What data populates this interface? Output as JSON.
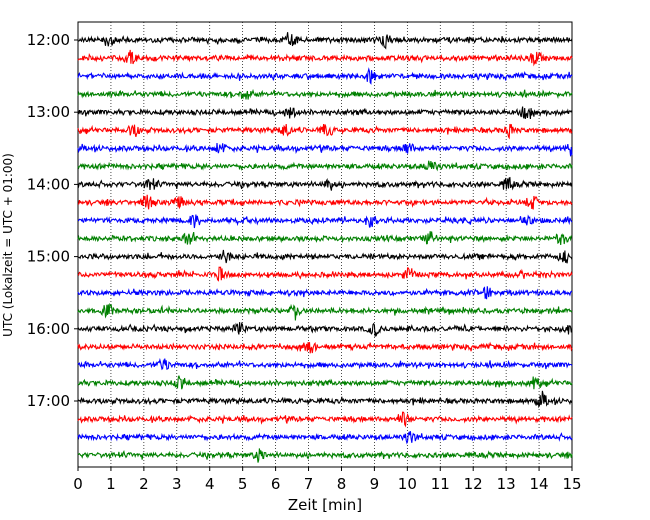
{
  "chart_data": {
    "type": "line",
    "title": "",
    "xlabel": "Zeit  [min]",
    "ylabel": "UTC (Lokalzeit = UTC + 01:00)",
    "xlim": [
      0,
      15
    ],
    "x_ticks": [
      "0",
      "1",
      "2",
      "3",
      "4",
      "5",
      "6",
      "7",
      "8",
      "9",
      "10",
      "11",
      "12",
      "13",
      "14",
      "15"
    ],
    "y_ticks": [
      "12:00",
      "13:00",
      "14:00",
      "15:00",
      "16:00",
      "17:00"
    ],
    "row_minutes": 15,
    "colors": [
      "#000000",
      "#ff0000",
      "#0000ff",
      "#008000"
    ],
    "grid": "vertical dotted",
    "traces": [
      {
        "start": "12:00",
        "events": [
          0.95,
          6.45,
          9.35
        ]
      },
      {
        "start": "12:15",
        "events": [
          1.6,
          13.9
        ]
      },
      {
        "start": "12:30",
        "events": [
          8.9
        ]
      },
      {
        "start": "12:45",
        "events": [
          5.1
        ]
      },
      {
        "start": "13:00",
        "events": [
          6.45,
          13.6
        ]
      },
      {
        "start": "13:15",
        "events": [
          1.7,
          6.3,
          7.55,
          13.1
        ]
      },
      {
        "start": "13:30",
        "events": [
          4.3,
          10.0,
          14.95
        ]
      },
      {
        "start": "13:45",
        "events": [
          10.7
        ]
      },
      {
        "start": "14:00",
        "events": [
          2.2,
          7.6,
          13.05
        ]
      },
      {
        "start": "14:15",
        "events": [
          2.1,
          3.05,
          13.8
        ]
      },
      {
        "start": "14:30",
        "events": [
          3.55,
          8.9,
          13.6
        ]
      },
      {
        "start": "14:45",
        "events": [
          3.35,
          10.7,
          14.7
        ]
      },
      {
        "start": "15:00",
        "events": [
          4.45,
          14.8
        ]
      },
      {
        "start": "15:15",
        "events": [
          4.3,
          10.05
        ]
      },
      {
        "start": "15:30",
        "events": [
          12.4
        ]
      },
      {
        "start": "15:45",
        "events": [
          0.9,
          6.6
        ]
      },
      {
        "start": "16:00",
        "events": [
          4.9,
          9.0,
          14.95
        ]
      },
      {
        "start": "16:15",
        "events": [
          7.05
        ]
      },
      {
        "start": "16:30",
        "events": [
          2.6
        ]
      },
      {
        "start": "16:45",
        "events": [
          3.1,
          13.85
        ]
      },
      {
        "start": "17:00",
        "events": [
          14.1
        ]
      },
      {
        "start": "17:15",
        "events": [
          9.9
        ]
      },
      {
        "start": "17:30",
        "events": [
          10.1
        ]
      },
      {
        "start": "17:45",
        "events": [
          5.5
        ]
      }
    ]
  }
}
